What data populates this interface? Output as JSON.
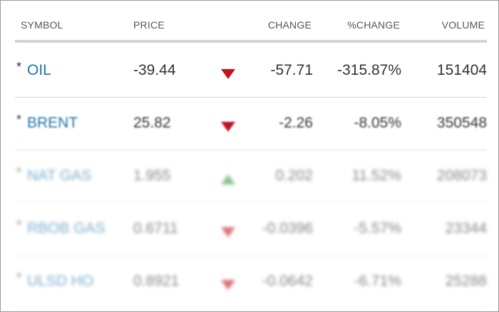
{
  "table": {
    "headers": [
      "SYMBOL",
      "PRICE",
      "CHANGE",
      "%CHANGE",
      "VOLUME"
    ],
    "rows": [
      {
        "marker": "*",
        "symbol": "OIL",
        "price": "-39.44",
        "change": "-57.71",
        "pct_change": "-315.87%",
        "volume": "151404"
      },
      {
        "marker": "*",
        "symbol": "BRENT",
        "price": "25.82",
        "change": "-2.26",
        "pct_change": "-8.05%",
        "volume": "350548"
      },
      {
        "marker": "*",
        "symbol": "NAT GAS",
        "price": "1.955",
        "change": "0.202",
        "pct_change": "11.52%",
        "volume": "208073"
      },
      {
        "marker": "*",
        "symbol": "RBOB GAS",
        "price": "0.6711",
        "change": "-0.0396",
        "pct_change": "-5.57%",
        "volume": "23344"
      },
      {
        "marker": "*",
        "symbol": "ULSD HO",
        "price": "0.8921",
        "change": "-0.0642",
        "pct_change": "-6.71%",
        "volume": "25288"
      }
    ]
  }
}
